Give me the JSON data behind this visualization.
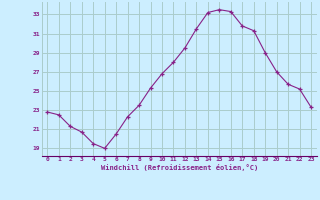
{
  "x": [
    0,
    1,
    2,
    3,
    4,
    5,
    6,
    7,
    8,
    9,
    10,
    11,
    12,
    13,
    14,
    15,
    16,
    17,
    18,
    19,
    20,
    21,
    22,
    23
  ],
  "y": [
    22.8,
    22.5,
    21.3,
    20.7,
    19.5,
    19.0,
    20.5,
    22.3,
    23.5,
    25.3,
    26.8,
    28.0,
    29.5,
    31.5,
    33.2,
    33.5,
    33.3,
    31.8,
    31.3,
    29.0,
    27.0,
    25.7,
    25.2,
    23.3
  ],
  "line_color": "#882288",
  "marker": "+",
  "bg_color": "#cceeff",
  "grid_color": "#aacccc",
  "xlabel": "Windchill (Refroidissement éolien,°C)",
  "xlabel_color": "#882288",
  "tick_color": "#882288",
  "ytick_labels": [
    "19",
    "21",
    "23",
    "25",
    "27",
    "29",
    "31",
    "33"
  ],
  "yticks": [
    19,
    21,
    23,
    25,
    27,
    29,
    31,
    33
  ],
  "ylim": [
    18.2,
    34.3
  ],
  "xlim": [
    -0.5,
    23.5
  ],
  "figsize": [
    3.2,
    2.0
  ],
  "dpi": 100
}
